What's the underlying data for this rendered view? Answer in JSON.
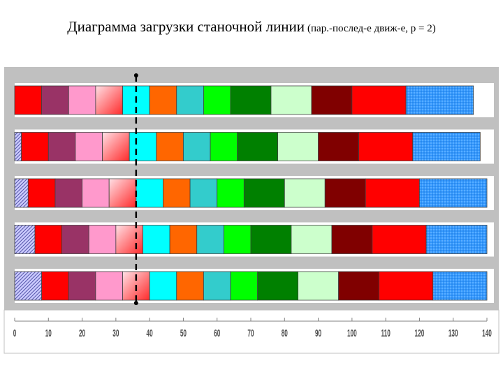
{
  "title": {
    "main": "Диаграмма загрузки станочной линии",
    "sub": "(пар.-послед-е движ-е, p = 2)"
  },
  "chart_data": {
    "type": "bar",
    "orientation": "horizontal-stacked",
    "xlim": [
      0,
      140
    ],
    "x_ticks": [
      "0",
      "10",
      "20",
      "30",
      "40",
      "50",
      "60",
      "70",
      "80",
      "90",
      "100",
      "110",
      "120",
      "130",
      "140"
    ],
    "grid": false,
    "dashed_marker_x": 36,
    "rows": [
      {
        "offset": 0,
        "segments": [
          {
            "start": 0,
            "end": 8,
            "color": "#ff0000"
          },
          {
            "start": 8,
            "end": 16,
            "color": "#993366"
          },
          {
            "start": 16,
            "end": 24,
            "color": "#ff99cc"
          },
          {
            "start": 24,
            "end": 32,
            "color": "#ff6666",
            "fill": "gradient"
          },
          {
            "start": 32,
            "end": 40,
            "color": "#00ffff"
          },
          {
            "start": 40,
            "end": 48,
            "color": "#ff6600"
          },
          {
            "start": 48,
            "end": 56,
            "color": "#33cccc"
          },
          {
            "start": 56,
            "end": 64,
            "color": "#00ff00"
          },
          {
            "start": 64,
            "end": 76,
            "color": "#008000"
          },
          {
            "start": 76,
            "end": 88,
            "color": "#ccffcc"
          },
          {
            "start": 88,
            "end": 100,
            "color": "#800000"
          },
          {
            "start": 100,
            "end": 116,
            "color": "#ff0000"
          },
          {
            "start": 116,
            "end": 136,
            "color": "#3399ff",
            "fill": "dotted"
          }
        ]
      },
      {
        "offset": 2,
        "segments": [
          {
            "start": 0,
            "end": 2,
            "color": "#9999ff",
            "fill": "hatch"
          },
          {
            "start": 2,
            "end": 10,
            "color": "#ff0000"
          },
          {
            "start": 10,
            "end": 18,
            "color": "#993366"
          },
          {
            "start": 18,
            "end": 26,
            "color": "#ff99cc"
          },
          {
            "start": 26,
            "end": 34,
            "color": "#ff6666",
            "fill": "gradient"
          },
          {
            "start": 34,
            "end": 42,
            "color": "#00ffff"
          },
          {
            "start": 42,
            "end": 50,
            "color": "#ff6600"
          },
          {
            "start": 50,
            "end": 58,
            "color": "#33cccc"
          },
          {
            "start": 58,
            "end": 66,
            "color": "#00ff00"
          },
          {
            "start": 66,
            "end": 78,
            "color": "#008000"
          },
          {
            "start": 78,
            "end": 90,
            "color": "#ccffcc"
          },
          {
            "start": 90,
            "end": 102,
            "color": "#800000"
          },
          {
            "start": 102,
            "end": 118,
            "color": "#ff0000"
          },
          {
            "start": 118,
            "end": 138,
            "color": "#3399ff",
            "fill": "dotted"
          }
        ]
      },
      {
        "offset": 4,
        "segments": [
          {
            "start": 0,
            "end": 4,
            "color": "#9999ff",
            "fill": "hatch"
          },
          {
            "start": 4,
            "end": 12,
            "color": "#ff0000"
          },
          {
            "start": 12,
            "end": 20,
            "color": "#993366"
          },
          {
            "start": 20,
            "end": 28,
            "color": "#ff99cc"
          },
          {
            "start": 28,
            "end": 36,
            "color": "#ff6666",
            "fill": "gradient"
          },
          {
            "start": 36,
            "end": 44,
            "color": "#00ffff"
          },
          {
            "start": 44,
            "end": 52,
            "color": "#ff6600"
          },
          {
            "start": 52,
            "end": 60,
            "color": "#33cccc"
          },
          {
            "start": 60,
            "end": 68,
            "color": "#00ff00"
          },
          {
            "start": 68,
            "end": 80,
            "color": "#008000"
          },
          {
            "start": 80,
            "end": 92,
            "color": "#ccffcc"
          },
          {
            "start": 92,
            "end": 104,
            "color": "#800000"
          },
          {
            "start": 104,
            "end": 120,
            "color": "#ff0000"
          },
          {
            "start": 120,
            "end": 140,
            "color": "#3399ff",
            "fill": "dotted"
          }
        ]
      },
      {
        "offset": 6,
        "segments": [
          {
            "start": 0,
            "end": 6,
            "color": "#9999ff",
            "fill": "hatch"
          },
          {
            "start": 6,
            "end": 14,
            "color": "#ff0000"
          },
          {
            "start": 14,
            "end": 22,
            "color": "#993366"
          },
          {
            "start": 22,
            "end": 30,
            "color": "#ff99cc"
          },
          {
            "start": 30,
            "end": 38,
            "color": "#ff6666",
            "fill": "gradient"
          },
          {
            "start": 38,
            "end": 46,
            "color": "#00ffff"
          },
          {
            "start": 46,
            "end": 54,
            "color": "#ff6600"
          },
          {
            "start": 54,
            "end": 62,
            "color": "#33cccc"
          },
          {
            "start": 62,
            "end": 70,
            "color": "#00ff00"
          },
          {
            "start": 70,
            "end": 82,
            "color": "#008000"
          },
          {
            "start": 82,
            "end": 94,
            "color": "#ccffcc"
          },
          {
            "start": 94,
            "end": 106,
            "color": "#800000"
          },
          {
            "start": 106,
            "end": 122,
            "color": "#ff0000"
          },
          {
            "start": 122,
            "end": 140,
            "color": "#3399ff",
            "fill": "dotted"
          }
        ]
      },
      {
        "offset": 8,
        "segments": [
          {
            "start": 0,
            "end": 8,
            "color": "#9999ff",
            "fill": "hatch"
          },
          {
            "start": 8,
            "end": 16,
            "color": "#ff0000"
          },
          {
            "start": 16,
            "end": 24,
            "color": "#993366"
          },
          {
            "start": 24,
            "end": 32,
            "color": "#ff99cc"
          },
          {
            "start": 32,
            "end": 40,
            "color": "#ff6666",
            "fill": "gradient"
          },
          {
            "start": 40,
            "end": 48,
            "color": "#00ffff"
          },
          {
            "start": 48,
            "end": 56,
            "color": "#ff6600"
          },
          {
            "start": 56,
            "end": 64,
            "color": "#33cccc"
          },
          {
            "start": 64,
            "end": 72,
            "color": "#00ff00"
          },
          {
            "start": 72,
            "end": 84,
            "color": "#008000"
          },
          {
            "start": 84,
            "end": 96,
            "color": "#ccffcc"
          },
          {
            "start": 96,
            "end": 108,
            "color": "#800000"
          },
          {
            "start": 108,
            "end": 124,
            "color": "#ff0000"
          },
          {
            "start": 124,
            "end": 140,
            "color": "#3399ff",
            "fill": "dotted"
          }
        ]
      }
    ]
  }
}
